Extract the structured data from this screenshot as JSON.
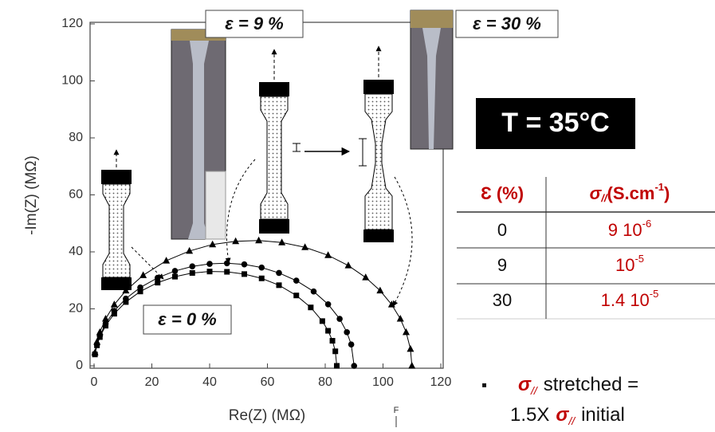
{
  "chart_data": {
    "type": "scatter",
    "xlabel": "Re(Z) (MΩ)",
    "ylabel": "-Im(Z) (MΩ)",
    "xlim": [
      0,
      120
    ],
    "ylim": [
      0,
      120
    ],
    "xticks": [
      0,
      20,
      40,
      60,
      80,
      100,
      120
    ],
    "yticks": [
      0,
      20,
      40,
      60,
      80,
      100,
      120
    ],
    "connect": true,
    "series": [
      {
        "marker": "square",
        "color": "#000000",
        "x": [
          0.3,
          1,
          2,
          4,
          7,
          11,
          16,
          22,
          28,
          34,
          40,
          46,
          52,
          58,
          64,
          70,
          75,
          79,
          81,
          82.5,
          83.5,
          84
        ],
        "values": [
          4.0,
          7.2,
          10.1,
          14.1,
          18.3,
          22.4,
          26.1,
          29.2,
          31.3,
          32.6,
          33.1,
          33.0,
          32.2,
          30.7,
          28.3,
          24.7,
          20.5,
          15.7,
          12.3,
          8.8,
          5.1,
          0
        ]
      },
      {
        "marker": "circle",
        "color": "#000000",
        "x": [
          0.3,
          1,
          2,
          4,
          7,
          11,
          16,
          22,
          28,
          34,
          40,
          46,
          52,
          58,
          64,
          70,
          76,
          81,
          85,
          87.5,
          89,
          90
        ],
        "values": [
          4.2,
          7.5,
          10.6,
          14.8,
          19.3,
          23.6,
          27.5,
          30.9,
          33.3,
          34.9,
          35.8,
          36.0,
          35.6,
          34.5,
          32.6,
          29.9,
          26.1,
          21.6,
          16.5,
          11.8,
          7.5,
          0
        ]
      },
      {
        "marker": "triangle",
        "color": "#000000",
        "x": [
          0.3,
          1,
          2,
          4,
          7,
          11,
          17,
          25,
          33,
          41,
          49,
          57,
          65,
          73,
          81,
          88,
          94,
          99,
          103,
          106,
          108,
          109.5,
          110
        ],
        "values": [
          4.6,
          8.4,
          11.8,
          16.5,
          21.5,
          26.4,
          31.8,
          36.9,
          40.3,
          42.6,
          43.7,
          44.0,
          43.3,
          41.6,
          38.8,
          35.2,
          31.0,
          26.4,
          21.5,
          16.5,
          11.8,
          5.9,
          0
        ]
      }
    ]
  },
  "annotations": {
    "strain_9": "ε = 9 %",
    "strain_30": "ε = 30 %",
    "strain_0": "ε = 0 %",
    "temperature": "T = 35°C",
    "corner_mark": "F"
  },
  "table": {
    "header": {
      "strain": "Ɛ (%)",
      "cond_symbol": "σ",
      "cond_sub": "//",
      "cond_unit": "(S.cm",
      "cond_exp": "-1",
      "cond_close": ")"
    },
    "rows": [
      {
        "strain": "0",
        "base": "9 10",
        "exp": "-6"
      },
      {
        "strain": "9",
        "base": "10",
        "exp": "-5"
      },
      {
        "strain": "30",
        "base": "1.4 10",
        "exp": "-5"
      }
    ]
  },
  "note": {
    "bullet": "▪",
    "sigma": "σ",
    "sub": "//",
    "line1": "stretched =",
    "prefix": "1.5X",
    "line2": "initial"
  }
}
